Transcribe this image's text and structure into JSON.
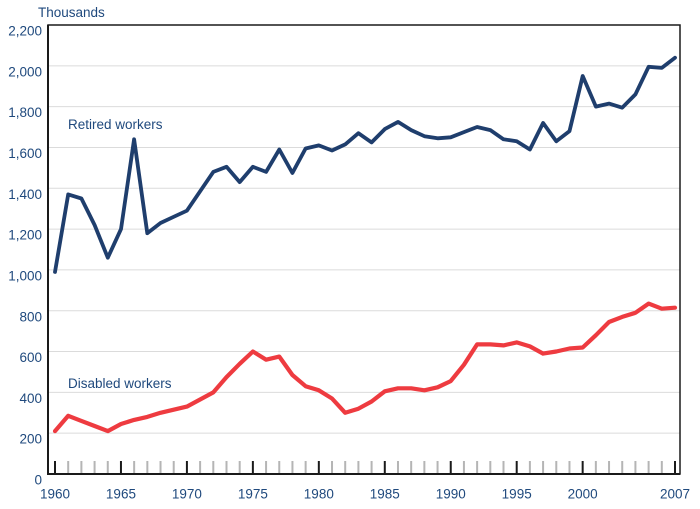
{
  "chart": {
    "units_label": "Thousands",
    "series_labels": {
      "retired": "Retired workers",
      "disabled": "Disabled workers"
    },
    "colors": {
      "retired": "#1F3E6D",
      "disabled": "#EE3B40",
      "axis_text": "#1F497D",
      "gridline": "#DBDBDB",
      "frame": "#1A1A1A",
      "major_tick": "#1A1A1A",
      "minor_tick": "#B5B5B5"
    }
  },
  "chart_data": {
    "type": "line",
    "title": "",
    "xlabel": "",
    "ylabel": "Thousands",
    "ylim": [
      0,
      2200
    ],
    "y_tick_step": 200,
    "grid": "horizontal",
    "legend": "inline-labels",
    "y_tick_labels": [
      "0",
      "200",
      "400",
      "600",
      "800",
      "1,000",
      "1,200",
      "1,400",
      "1,600",
      "1,800",
      "2,000",
      "2,200"
    ],
    "x_labeled_ticks": [
      1960,
      1965,
      1970,
      1975,
      1980,
      1985,
      1990,
      1995,
      2000,
      2007
    ],
    "x": [
      1960,
      1961,
      1962,
      1963,
      1964,
      1965,
      1966,
      1967,
      1968,
      1969,
      1970,
      1971,
      1972,
      1973,
      1974,
      1975,
      1976,
      1977,
      1978,
      1979,
      1980,
      1981,
      1982,
      1983,
      1984,
      1985,
      1986,
      1987,
      1988,
      1989,
      1990,
      1991,
      1992,
      1993,
      1994,
      1995,
      1996,
      1997,
      1998,
      1999,
      2000,
      2001,
      2002,
      2003,
      2004,
      2005,
      2006,
      2007
    ],
    "series": [
      {
        "name": "Retired workers",
        "key": "retired-workers",
        "color_key": "retired",
        "values": [
          990,
          1370,
          1350,
          1220,
          1060,
          1200,
          1640,
          1180,
          1230,
          1260,
          1290,
          1385,
          1480,
          1505,
          1430,
          1505,
          1480,
          1590,
          1475,
          1595,
          1610,
          1585,
          1615,
          1670,
          1625,
          1690,
          1725,
          1685,
          1655,
          1645,
          1650,
          1675,
          1700,
          1685,
          1640,
          1630,
          1590,
          1720,
          1630,
          1680,
          1950,
          1800,
          1815,
          1795,
          1860,
          1995,
          1990,
          2040
        ]
      },
      {
        "name": "Disabled workers",
        "key": "disabled-workers",
        "color_key": "disabled",
        "values": [
          210,
          285,
          260,
          235,
          210,
          245,
          265,
          280,
          300,
          315,
          330,
          365,
          400,
          475,
          540,
          600,
          560,
          575,
          485,
          430,
          410,
          370,
          300,
          320,
          355,
          405,
          420,
          420,
          410,
          425,
          455,
          535,
          635,
          635,
          630,
          645,
          625,
          590,
          600,
          615,
          620,
          680,
          745,
          770,
          790,
          835,
          810,
          815
        ]
      }
    ]
  }
}
